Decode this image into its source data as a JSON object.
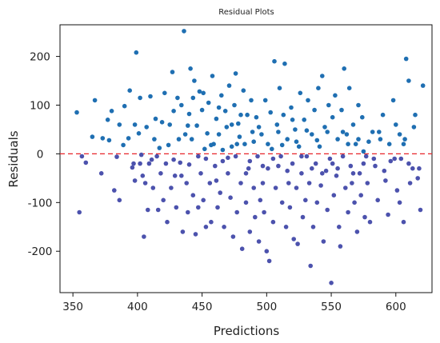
{
  "chart_data": {
    "type": "scatter",
    "title": "Residual Plots",
    "xlabel": "Predictions",
    "ylabel": "Residuals",
    "xlim": [
      340,
      628
    ],
    "ylim": [
      -285,
      265
    ],
    "xticks": [
      350,
      400,
      450,
      500,
      550,
      600
    ],
    "xtick_labels": [
      "350",
      "400",
      "450",
      "500",
      "550",
      "600"
    ],
    "yticks": [
      200,
      100,
      0,
      -100,
      -200
    ],
    "ytick_labels": [
      "200",
      "100",
      "0",
      "-100",
      "-200"
    ],
    "reference_line": {
      "y": 0,
      "color": "#e8252a",
      "style": "dashed"
    },
    "point_colors": {
      "positive": "#1f6fb2",
      "negative": "#4c52ad"
    },
    "grid": false,
    "legend": "none",
    "points": [
      [
        353,
        85
      ],
      [
        355,
        -120
      ],
      [
        360,
        -18
      ],
      [
        367,
        110
      ],
      [
        373,
        32
      ],
      [
        378,
        28
      ],
      [
        380,
        88
      ],
      [
        384,
        -6
      ],
      [
        386,
        60
      ],
      [
        386,
        -95
      ],
      [
        390,
        98
      ],
      [
        393,
        32
      ],
      [
        396,
        -28
      ],
      [
        398,
        -55
      ],
      [
        398,
        60
      ],
      [
        399,
        208
      ],
      [
        402,
        115
      ],
      [
        402,
        -20
      ],
      [
        404,
        -45
      ],
      [
        405,
        -170
      ],
      [
        408,
        -115
      ],
      [
        409,
        -20
      ],
      [
        410,
        118
      ],
      [
        412,
        -70
      ],
      [
        413,
        30
      ],
      [
        414,
        72
      ],
      [
        415,
        -5
      ],
      [
        416,
        -115
      ],
      [
        418,
        -40
      ],
      [
        419,
        65
      ],
      [
        420,
        -95
      ],
      [
        421,
        125
      ],
      [
        423,
        -140
      ],
      [
        424,
        18
      ],
      [
        425,
        60
      ],
      [
        426,
        -70
      ],
      [
        427,
        168
      ],
      [
        428,
        88
      ],
      [
        429,
        -45
      ],
      [
        430,
        -110
      ],
      [
        431,
        115
      ],
      [
        432,
        30
      ],
      [
        433,
        -18
      ],
      [
        434,
        100
      ],
      [
        435,
        -160
      ],
      [
        436,
        252
      ],
      [
        437,
        40
      ],
      [
        438,
        -60
      ],
      [
        439,
        -120
      ],
      [
        440,
        -22
      ],
      [
        440,
        82
      ],
      [
        441,
        175
      ],
      [
        442,
        30
      ],
      [
        443,
        -85
      ],
      [
        444,
        150
      ],
      [
        445,
        -165
      ],
      [
        446,
        58
      ],
      [
        447,
        -5
      ],
      [
        448,
        128
      ],
      [
        449,
        -40
      ],
      [
        450,
        90
      ],
      [
        451,
        -95
      ],
      [
        452,
        10
      ],
      [
        453,
        -150
      ],
      [
        454,
        42
      ],
      [
        455,
        105
      ],
      [
        456,
        -60
      ],
      [
        457,
        -140
      ],
      [
        458,
        160
      ],
      [
        459,
        20
      ],
      [
        460,
        -25
      ],
      [
        461,
        72
      ],
      [
        462,
        -110
      ],
      [
        463,
        40
      ],
      [
        464,
        -80
      ],
      [
        465,
        120
      ],
      [
        466,
        -15
      ],
      [
        467,
        -150
      ],
      [
        468,
        88
      ],
      [
        469,
        55
      ],
      [
        470,
        -40
      ],
      [
        471,
        140
      ],
      [
        472,
        -90
      ],
      [
        473,
        15
      ],
      [
        474,
        -170
      ],
      [
        475,
        100
      ],
      [
        476,
        165
      ],
      [
        476,
        -5
      ],
      [
        477,
        -120
      ],
      [
        478,
        62
      ],
      [
        479,
        35
      ],
      [
        480,
        -60
      ],
      [
        481,
        -195
      ],
      [
        482,
        130
      ],
      [
        483,
        20
      ],
      [
        484,
        -100
      ],
      [
        485,
        80
      ],
      [
        486,
        -30
      ],
      [
        487,
        -160
      ],
      [
        488,
        110
      ],
      [
        489,
        45
      ],
      [
        490,
        -70
      ],
      [
        491,
        -130
      ],
      [
        492,
        75
      ],
      [
        493,
        -5
      ],
      [
        494,
        -180
      ],
      [
        495,
        -95
      ],
      [
        496,
        40
      ],
      [
        497,
        -60
      ],
      [
        498,
        -120
      ],
      [
        499,
        110
      ],
      [
        500,
        -200
      ],
      [
        501,
        -30
      ],
      [
        502,
        -220
      ],
      [
        503,
        85
      ],
      [
        504,
        10
      ],
      [
        505,
        -140
      ],
      [
        506,
        190
      ],
      [
        507,
        -70
      ],
      [
        508,
        60
      ],
      [
        509,
        -25
      ],
      [
        510,
        135
      ],
      [
        511,
        -5
      ],
      [
        512,
        -100
      ],
      [
        513,
        80
      ],
      [
        514,
        185
      ],
      [
        515,
        -150
      ],
      [
        516,
        30
      ],
      [
        517,
        -60
      ],
      [
        518,
        -110
      ],
      [
        519,
        95
      ],
      [
        520,
        -20
      ],
      [
        521,
        -175
      ],
      [
        522,
        50
      ],
      [
        523,
        -70
      ],
      [
        524,
        -185
      ],
      [
        525,
        15
      ],
      [
        526,
        125
      ],
      [
        527,
        -40
      ],
      [
        528,
        -130
      ],
      [
        529,
        70
      ],
      [
        530,
        -95
      ],
      [
        531,
        -5
      ],
      [
        532,
        110
      ],
      [
        533,
        -60
      ],
      [
        534,
        -230
      ],
      [
        535,
        40
      ],
      [
        536,
        -150
      ],
      [
        537,
        90
      ],
      [
        538,
        -20
      ],
      [
        539,
        -100
      ],
      [
        540,
        135
      ],
      [
        541,
        15
      ],
      [
        542,
        -65
      ],
      [
        543,
        160
      ],
      [
        544,
        -180
      ],
      [
        545,
        55
      ],
      [
        546,
        -35
      ],
      [
        547,
        -115
      ],
      [
        548,
        100
      ],
      [
        549,
        -10
      ],
      [
        550,
        -265
      ],
      [
        551,
        75
      ],
      [
        552,
        -85
      ],
      [
        553,
        120
      ],
      [
        554,
        -45
      ],
      [
        555,
        30
      ],
      [
        556,
        -150
      ],
      [
        557,
        -190
      ],
      [
        558,
        90
      ],
      [
        559,
        -5
      ],
      [
        560,
        175
      ],
      [
        561,
        -70
      ],
      [
        562,
        40
      ],
      [
        563,
        -120
      ],
      [
        564,
        135
      ],
      [
        565,
        -25
      ],
      [
        566,
        -60
      ],
      [
        567,
        60
      ],
      [
        568,
        -100
      ],
      [
        569,
        20
      ],
      [
        570,
        -160
      ],
      [
        571,
        100
      ],
      [
        572,
        -40
      ],
      [
        573,
        -85
      ],
      [
        574,
        75
      ],
      [
        575,
        5
      ],
      [
        576,
        -130
      ],
      [
        577,
        -5
      ],
      [
        578,
        -60
      ],
      [
        580,
        -140
      ],
      [
        582,
        45
      ],
      [
        584,
        -25
      ],
      [
        586,
        -95
      ],
      [
        588,
        30
      ],
      [
        590,
        80
      ],
      [
        592,
        -55
      ],
      [
        594,
        -125
      ],
      [
        596,
        -15
      ],
      [
        598,
        110
      ],
      [
        600,
        60
      ],
      [
        601,
        -75
      ],
      [
        603,
        -100
      ],
      [
        604,
        -10
      ],
      [
        606,
        -140
      ],
      [
        607,
        30
      ],
      [
        608,
        195
      ],
      [
        610,
        150
      ],
      [
        611,
        -60
      ],
      [
        613,
        -30
      ],
      [
        615,
        80
      ],
      [
        617,
        -50
      ],
      [
        619,
        -115
      ],
      [
        621,
        140
      ],
      [
        357,
        -5
      ],
      [
        365,
        35
      ],
      [
        372,
        -40
      ],
      [
        377,
        70
      ],
      [
        382,
        -75
      ],
      [
        389,
        18
      ],
      [
        394,
        130
      ],
      [
        397,
        -20
      ],
      [
        401,
        42
      ],
      [
        403,
        -2
      ],
      [
        406,
        -60
      ],
      [
        407,
        55
      ],
      [
        411,
        -12
      ],
      [
        417,
        12
      ],
      [
        422,
        -20
      ],
      [
        428,
        -12
      ],
      [
        434,
        -45
      ],
      [
        439,
        58
      ],
      [
        443,
        115
      ],
      [
        447,
        -110
      ],
      [
        451,
        125
      ],
      [
        453,
        -10
      ],
      [
        457,
        18
      ],
      [
        461,
        -55
      ],
      [
        463,
        95
      ],
      [
        466,
        8
      ],
      [
        470,
        -8
      ],
      [
        473,
        60
      ],
      [
        477,
        20
      ],
      [
        480,
        80
      ],
      [
        484,
        -40
      ],
      [
        487,
        -15
      ],
      [
        490,
        25
      ],
      [
        494,
        55
      ],
      [
        497,
        -25
      ],
      [
        501,
        20
      ],
      [
        505,
        -10
      ],
      [
        509,
        45
      ],
      [
        512,
        18
      ],
      [
        516,
        -35
      ],
      [
        520,
        70
      ],
      [
        523,
        25
      ],
      [
        527,
        -5
      ],
      [
        531,
        48
      ],
      [
        535,
        -30
      ],
      [
        539,
        28
      ],
      [
        543,
        -40
      ],
      [
        547,
        45
      ],
      [
        551,
        -20
      ],
      [
        555,
        -30
      ],
      [
        559,
        45
      ],
      [
        563,
        20
      ],
      [
        567,
        -40
      ],
      [
        571,
        30
      ],
      [
        575,
        -20
      ],
      [
        579,
        25
      ],
      [
        583,
        -10
      ],
      [
        587,
        45
      ],
      [
        591,
        -35
      ],
      [
        595,
        20
      ],
      [
        599,
        -10
      ],
      [
        603,
        40
      ],
      [
        606,
        20
      ],
      [
        610,
        -20
      ],
      [
        614,
        55
      ],
      [
        618,
        -30
      ]
    ]
  }
}
